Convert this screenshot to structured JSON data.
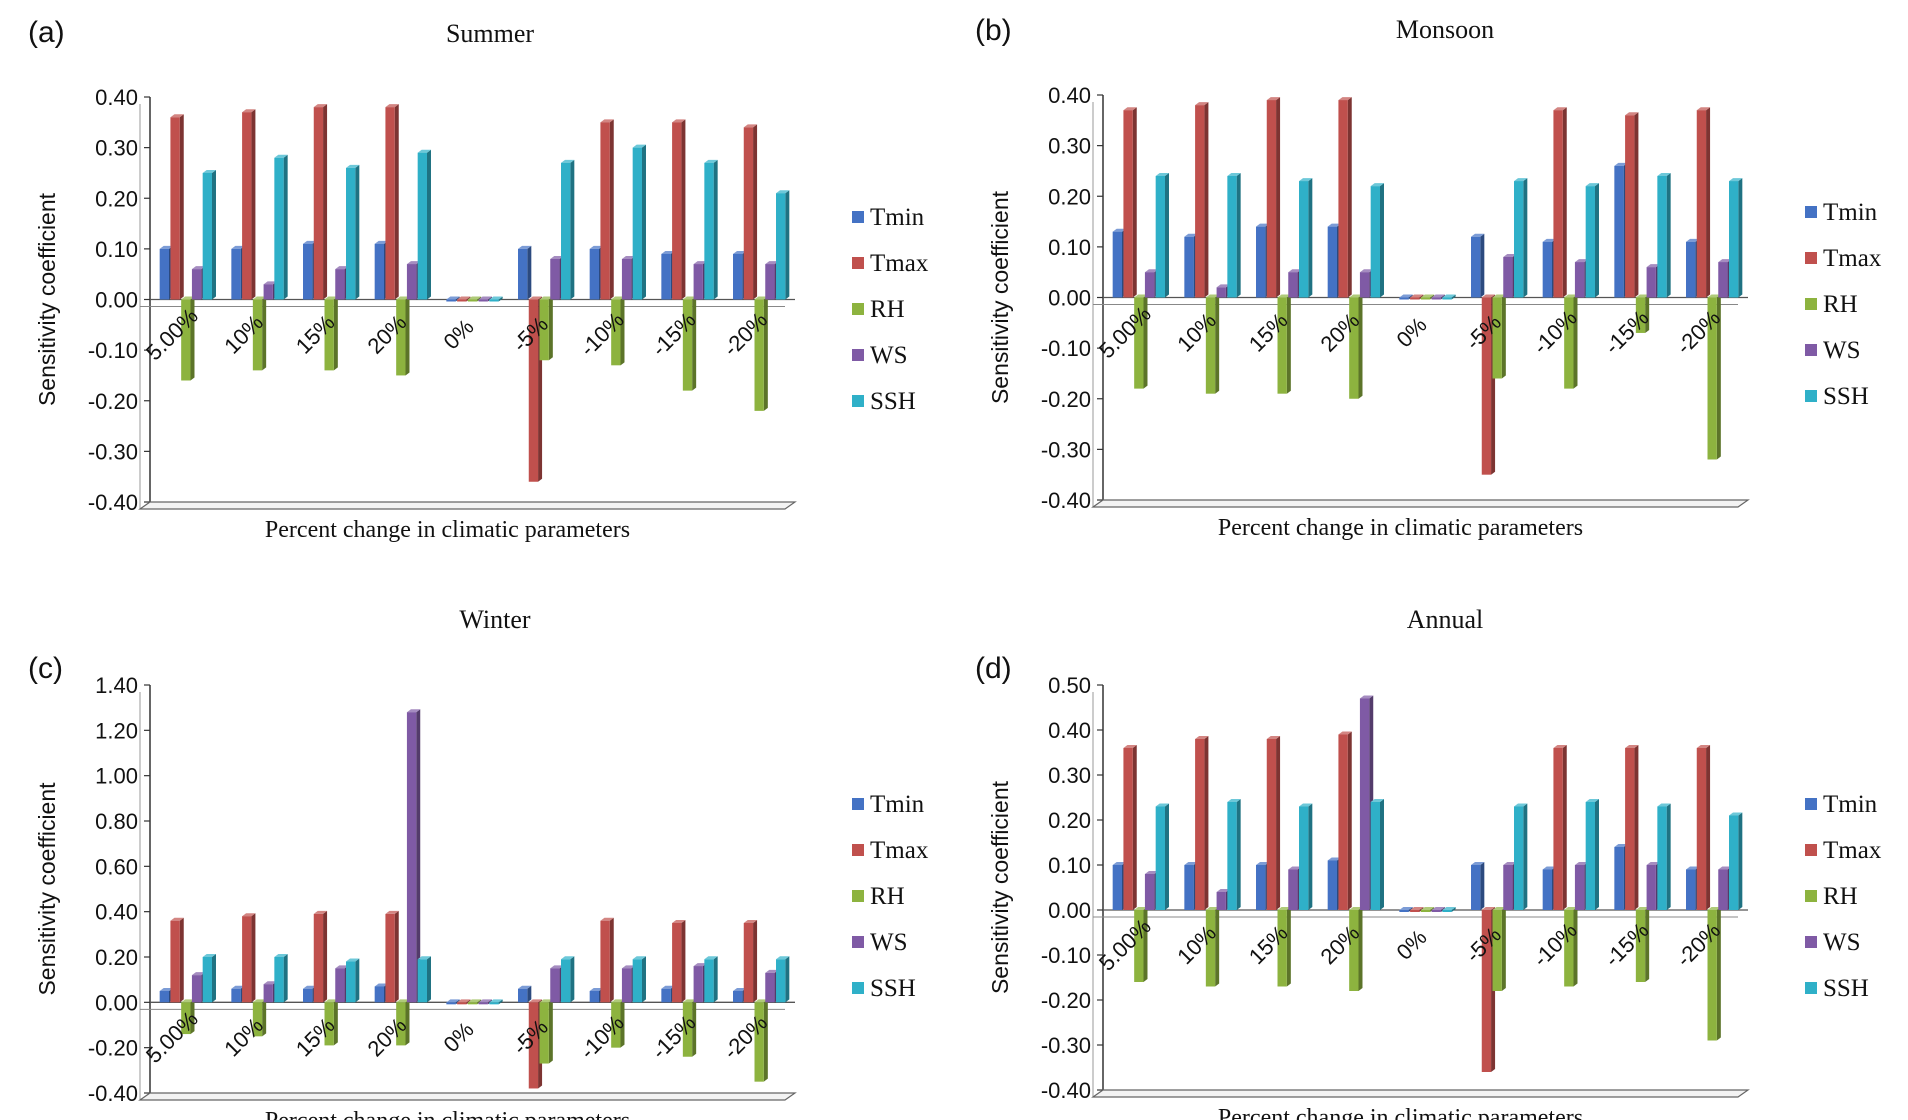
{
  "chart_data": [
    {
      "type": "bar",
      "panel": "(a)",
      "title": "Summer",
      "xlabel": "Percent change in climatic parameters",
      "ylabel": "Sensitivity coefficient",
      "ylim": [
        -0.4,
        0.4
      ],
      "yticks": [
        "0.40",
        "0.30",
        "0.20",
        "0.10",
        "0.00",
        "-0.10",
        "-0.20",
        "-0.30",
        "-0.40"
      ],
      "categories": [
        "5.00%",
        "10%",
        "15%",
        "20%",
        "0%",
        "-5%",
        "-10%",
        "-15%",
        "-20%"
      ],
      "series": [
        {
          "name": "Tmin",
          "values": [
            0.1,
            0.1,
            0.11,
            0.11,
            0,
            0.1,
            0.1,
            0.09,
            0.09
          ]
        },
        {
          "name": "Tmax",
          "values": [
            0.36,
            0.37,
            0.38,
            0.38,
            0,
            -0.36,
            0.35,
            0.35,
            0.34
          ]
        },
        {
          "name": "RH",
          "values": [
            -0.16,
            -0.14,
            -0.14,
            -0.15,
            0,
            -0.12,
            -0.13,
            -0.18,
            -0.22
          ]
        },
        {
          "name": "WS",
          "values": [
            0.06,
            0.03,
            0.06,
            0.07,
            0,
            0.08,
            0.08,
            0.07,
            0.07
          ]
        },
        {
          "name": "SSH",
          "values": [
            0.25,
            0.28,
            0.26,
            0.29,
            0,
            0.27,
            0.3,
            0.27,
            0.21
          ]
        }
      ]
    },
    {
      "type": "bar",
      "panel": "(b)",
      "title": "Monsoon",
      "xlabel": "Percent change in climatic parameters",
      "ylabel": "Sensitivity coefficient",
      "ylim": [
        -0.4,
        0.4
      ],
      "yticks": [
        "0.40",
        "0.30",
        "0.20",
        "0.10",
        "0.00",
        "-0.10",
        "-0.20",
        "-0.30",
        "-0.40"
      ],
      "categories": [
        "5.00%",
        "10%",
        "15%",
        "20%",
        "0%",
        "-5%",
        "-10%",
        "-15%",
        "-20%"
      ],
      "series": [
        {
          "name": "Tmin",
          "values": [
            0.13,
            0.12,
            0.14,
            0.14,
            0,
            0.12,
            0.11,
            0.26,
            0.11
          ]
        },
        {
          "name": "Tmax",
          "values": [
            0.37,
            0.38,
            0.39,
            0.39,
            0,
            -0.35,
            0.37,
            0.36,
            0.37
          ]
        },
        {
          "name": "RH",
          "values": [
            -0.18,
            -0.19,
            -0.19,
            -0.2,
            0,
            -0.16,
            -0.18,
            -0.07,
            -0.32
          ]
        },
        {
          "name": "WS",
          "values": [
            0.05,
            0.02,
            0.05,
            0.05,
            0,
            0.08,
            0.07,
            0.06,
            0.07
          ]
        },
        {
          "name": "SSH",
          "values": [
            0.24,
            0.24,
            0.23,
            0.22,
            0,
            0.23,
            0.22,
            0.24,
            0.23
          ]
        }
      ]
    },
    {
      "type": "bar",
      "panel": "(c)",
      "title": "Winter",
      "xlabel": "Percent change in climatic parameters",
      "ylabel": "Sensitivity coefficient",
      "ylim": [
        -0.4,
        1.4
      ],
      "yticks": [
        "1.40",
        "1.20",
        "1.00",
        "0.80",
        "0.60",
        "0.40",
        "0.20",
        "0.00",
        "-0.20",
        "-0.40"
      ],
      "categories": [
        "5.00%",
        "10%",
        "15%",
        "20%",
        "0%",
        "-5%",
        "-10%",
        "-15%",
        "-20%"
      ],
      "series": [
        {
          "name": "Tmin",
          "values": [
            0.05,
            0.06,
            0.06,
            0.07,
            0,
            0.06,
            0.05,
            0.06,
            0.05
          ]
        },
        {
          "name": "Tmax",
          "values": [
            0.36,
            0.38,
            0.39,
            0.39,
            0,
            -0.38,
            0.36,
            0.35,
            0.35
          ]
        },
        {
          "name": "RH",
          "values": [
            -0.14,
            -0.15,
            -0.19,
            -0.19,
            0,
            -0.27,
            -0.2,
            -0.24,
            -0.35
          ]
        },
        {
          "name": "WS",
          "values": [
            0.12,
            0.08,
            0.15,
            1.28,
            0,
            0.15,
            0.15,
            0.16,
            0.13
          ]
        },
        {
          "name": "SSH",
          "values": [
            0.2,
            0.2,
            0.18,
            0.19,
            0,
            0.19,
            0.19,
            0.19,
            0.19
          ]
        }
      ]
    },
    {
      "type": "bar",
      "panel": "(d)",
      "title": "Annual",
      "xlabel": "Percent change in climatic parameters",
      "ylabel": "Sensitivity coefficient",
      "ylim": [
        -0.4,
        0.5
      ],
      "yticks": [
        "0.50",
        "0.40",
        "0.30",
        "0.20",
        "0.10",
        "0.00",
        "-0.10",
        "-0.20",
        "-0.30",
        "-0.40"
      ],
      "categories": [
        "5.00%",
        "10%",
        "15%",
        "20%",
        "0%",
        "-5%",
        "-10%",
        "-15%",
        "-20%"
      ],
      "series": [
        {
          "name": "Tmin",
          "values": [
            0.1,
            0.1,
            0.1,
            0.11,
            0,
            0.1,
            0.09,
            0.14,
            0.09
          ]
        },
        {
          "name": "Tmax",
          "values": [
            0.36,
            0.38,
            0.38,
            0.39,
            0,
            -0.36,
            0.36,
            0.36,
            0.36
          ]
        },
        {
          "name": "RH",
          "values": [
            -0.16,
            -0.17,
            -0.17,
            -0.18,
            0,
            -0.18,
            -0.17,
            -0.16,
            -0.29
          ]
        },
        {
          "name": "WS",
          "values": [
            0.08,
            0.04,
            0.09,
            0.47,
            0,
            0.1,
            0.1,
            0.1,
            0.09
          ]
        },
        {
          "name": "SSH",
          "values": [
            0.23,
            0.24,
            0.23,
            0.24,
            0,
            0.23,
            0.24,
            0.23,
            0.21
          ]
        }
      ]
    }
  ],
  "colors": {
    "Tmin": "#4472c4",
    "Tmax": "#c0504d",
    "RH": "#8db33f",
    "WS": "#7f5aa5",
    "SSH": "#2fb0c8",
    "axis": "#333333",
    "floor": "#f3f3f3"
  }
}
